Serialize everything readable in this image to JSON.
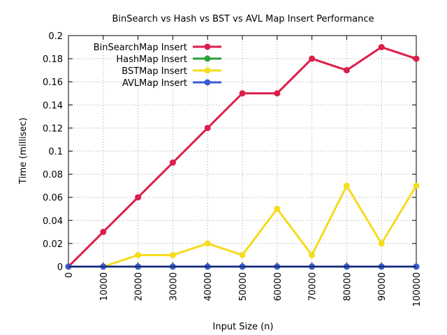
{
  "chart_data": {
    "type": "line",
    "title": "BinSearch vs Hash vs BST vs AVL Map Insert Performance",
    "xlabel": "Input Size (n)",
    "ylabel": "Time (millisec)",
    "x": [
      0,
      10000,
      20000,
      30000,
      40000,
      50000,
      60000,
      70000,
      80000,
      90000,
      100000
    ],
    "xlim": [
      0,
      100000
    ],
    "ylim": [
      0,
      0.2
    ],
    "xticks": [
      "0",
      "10000",
      "20000",
      "30000",
      "40000",
      "50000",
      "60000",
      "70000",
      "80000",
      "90000",
      "100000"
    ],
    "yticks": [
      "0",
      "0.02",
      "0.04",
      "0.06",
      "0.08",
      "0.1",
      "0.12",
      "0.14",
      "0.16",
      "0.18",
      "0.2"
    ],
    "grid": true,
    "legend_position": "top-left",
    "series": [
      {
        "name": "BinSearchMap Insert",
        "color": "#dc1e4b",
        "values": [
          0,
          0.03,
          0.06,
          0.09,
          0.12,
          0.15,
          0.15,
          0.18,
          0.17,
          0.19,
          0.18
        ]
      },
      {
        "name": "HashMap Insert",
        "color": "#2ea03c",
        "values": [
          0,
          0,
          0,
          0,
          0,
          0,
          0,
          0,
          0,
          0,
          0
        ]
      },
      {
        "name": "BSTMap Insert",
        "color": "#f5dc1e",
        "values": [
          0,
          0,
          0.01,
          0.01,
          0.02,
          0.01,
          0.05,
          0.01,
          0.07,
          0.02,
          0.07
        ]
      },
      {
        "name": "AVLMap Insert",
        "color": "#3c5ad2",
        "values": [
          0,
          0,
          0,
          0,
          0,
          0,
          0,
          0,
          0,
          0,
          0
        ]
      }
    ]
  }
}
